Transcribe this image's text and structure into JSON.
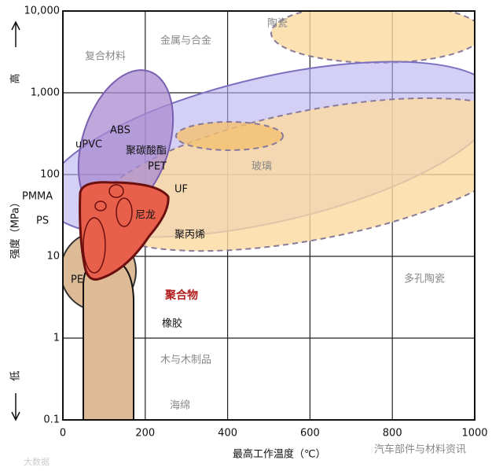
{
  "chart_data": {
    "type": "region",
    "x_label": "最高工作温度（℃）",
    "y_label": "强度（MPa）",
    "y_high": "高",
    "y_low": "低",
    "xlim": [
      0,
      1000
    ],
    "ylim": [
      0.1,
      10000
    ],
    "log_y": true,
    "grid": true,
    "xticks": [
      0,
      200,
      400,
      600,
      800,
      1000
    ],
    "yticks": [
      0.1,
      1,
      10,
      100,
      {
        "value": 1000,
        "label": "1,000"
      },
      {
        "value": 10000,
        "label": "10,000"
      }
    ],
    "region_labels": [
      "陶瓷",
      "金属与合金",
      "复合材料",
      "ABS",
      "uPVC",
      "聚碳酸酯",
      "PET",
      "PMMA",
      "UF",
      "PS",
      "尼龙",
      "聚丙烯",
      "玻璃",
      "PE",
      "聚合物",
      "橡胶",
      "多孔陶瓷",
      "木与木制品",
      "海绵"
    ]
  },
  "watermarks": [
    "汽车部件与材料资讯",
    "大数据"
  ]
}
